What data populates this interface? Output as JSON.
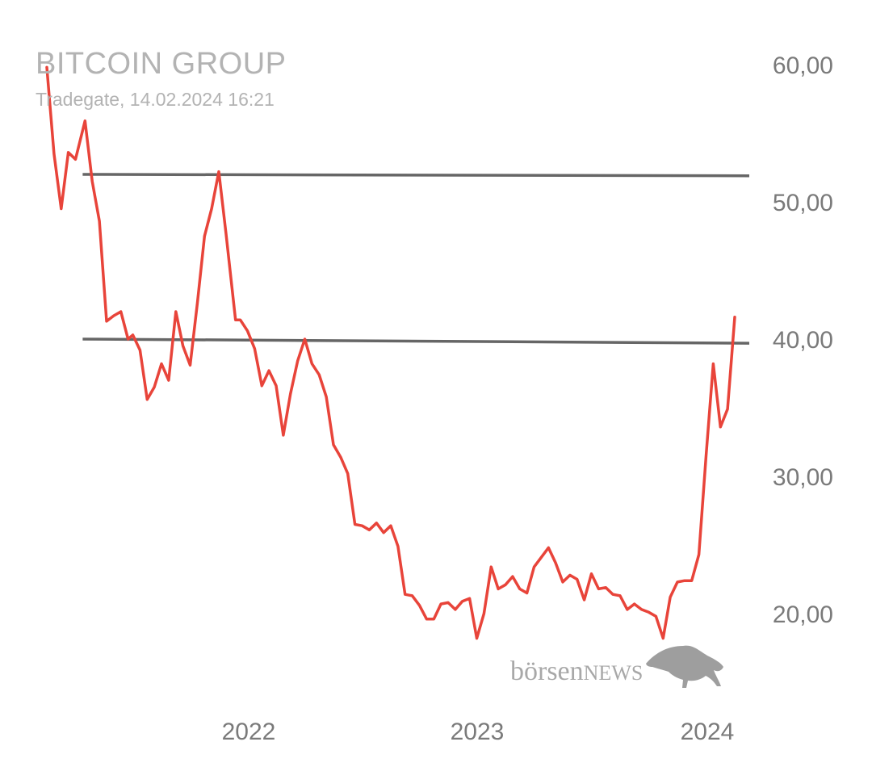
{
  "header": {
    "title": "BITCOIN GROUP",
    "subtitle": "Tradegate, 14.02.2024 16:21"
  },
  "watermark": {
    "word_lower": "börsen",
    "word_upper": "NEWS",
    "icon": "bull-icon"
  },
  "colors": {
    "line": "#e8443a",
    "levels": "#666666",
    "text": "#7a7a7a",
    "title": "#b3b3b3"
  },
  "chart_data": {
    "type": "line",
    "title": "BITCOIN GROUP",
    "subtitle": "Tradegate, 14.02.2024 16:21",
    "xlabel": "",
    "ylabel": "",
    "y_axis_position": "right",
    "grid": false,
    "legend": "none",
    "ylim": [
      15.0,
      60.0
    ],
    "y_ticks": [
      20.0,
      30.0,
      40.0,
      50.0,
      60.0
    ],
    "y_tick_labels": [
      "20,00",
      "30,00",
      "40,00",
      "50,00",
      "60,00"
    ],
    "xlim": [
      2021.1,
      2024.15
    ],
    "x_ticks": [
      2022,
      2023,
      2024
    ],
    "x_tick_labels": [
      "2022",
      "2023",
      "2024"
    ],
    "reference_lines": [
      {
        "x_start": 2021.25,
        "x_end": 2024.12,
        "y_start": 52.0,
        "y_end": 51.9
      },
      {
        "x_start": 2021.25,
        "x_end": 2024.12,
        "y_start": 40.0,
        "y_end": 39.7
      }
    ],
    "series": [
      {
        "values": [
          [
            2021.1,
            59.8
          ],
          [
            2021.13,
            53.5
          ],
          [
            2021.16,
            49.5
          ],
          [
            2021.19,
            53.6
          ],
          [
            2021.22,
            53.1
          ],
          [
            2021.26,
            55.9
          ],
          [
            2021.29,
            51.5
          ],
          [
            2021.32,
            48.6
          ],
          [
            2021.35,
            41.3
          ],
          [
            2021.38,
            41.7
          ],
          [
            2021.41,
            42.0
          ],
          [
            2021.44,
            40.0
          ],
          [
            2021.46,
            40.3
          ],
          [
            2021.49,
            39.2
          ],
          [
            2021.52,
            35.6
          ],
          [
            2021.55,
            36.5
          ],
          [
            2021.58,
            38.2
          ],
          [
            2021.61,
            37.0
          ],
          [
            2021.64,
            42.0
          ],
          [
            2021.67,
            39.5
          ],
          [
            2021.7,
            38.1
          ],
          [
            2021.73,
            42.6
          ],
          [
            2021.76,
            47.5
          ],
          [
            2021.79,
            49.5
          ],
          [
            2021.82,
            52.2
          ],
          [
            2021.85,
            47.7
          ],
          [
            2021.89,
            41.4
          ],
          [
            2021.91,
            41.4
          ],
          [
            2021.94,
            40.6
          ],
          [
            2021.97,
            39.3
          ],
          [
            2022.0,
            36.6
          ],
          [
            2022.03,
            37.7
          ],
          [
            2022.06,
            36.6
          ],
          [
            2022.09,
            33.0
          ],
          [
            2022.12,
            36.0
          ],
          [
            2022.15,
            38.4
          ],
          [
            2022.18,
            40.0
          ],
          [
            2022.21,
            38.2
          ],
          [
            2022.24,
            37.4
          ],
          [
            2022.27,
            35.8
          ],
          [
            2022.3,
            32.3
          ],
          [
            2022.33,
            31.4
          ],
          [
            2022.36,
            30.2
          ],
          [
            2022.39,
            26.5
          ],
          [
            2022.42,
            26.4
          ],
          [
            2022.45,
            26.1
          ],
          [
            2022.48,
            26.6
          ],
          [
            2022.51,
            25.9
          ],
          [
            2022.54,
            26.4
          ],
          [
            2022.57,
            24.9
          ],
          [
            2022.6,
            21.4
          ],
          [
            2022.63,
            21.3
          ],
          [
            2022.66,
            20.6
          ],
          [
            2022.69,
            19.6
          ],
          [
            2022.72,
            19.6
          ],
          [
            2022.75,
            20.7
          ],
          [
            2022.78,
            20.8
          ],
          [
            2022.81,
            20.3
          ],
          [
            2022.84,
            20.9
          ],
          [
            2022.87,
            21.1
          ],
          [
            2022.9,
            18.2
          ],
          [
            2022.93,
            20.0
          ],
          [
            2022.96,
            23.4
          ],
          [
            2022.99,
            21.8
          ],
          [
            2023.02,
            22.1
          ],
          [
            2023.05,
            22.7
          ],
          [
            2023.08,
            21.8
          ],
          [
            2023.11,
            21.5
          ],
          [
            2023.14,
            23.4
          ],
          [
            2023.17,
            24.1
          ],
          [
            2023.2,
            24.8
          ],
          [
            2023.23,
            23.7
          ],
          [
            2023.26,
            22.3
          ],
          [
            2023.29,
            22.8
          ],
          [
            2023.32,
            22.5
          ],
          [
            2023.35,
            21.0
          ],
          [
            2023.38,
            22.9
          ],
          [
            2023.41,
            21.8
          ],
          [
            2023.44,
            21.9
          ],
          [
            2023.47,
            21.4
          ],
          [
            2023.5,
            21.3
          ],
          [
            2023.53,
            20.3
          ],
          [
            2023.56,
            20.7
          ],
          [
            2023.59,
            20.3
          ],
          [
            2023.62,
            20.1
          ],
          [
            2023.65,
            19.8
          ],
          [
            2023.68,
            18.2
          ],
          [
            2023.71,
            21.2
          ],
          [
            2023.74,
            22.3
          ],
          [
            2023.77,
            22.4
          ],
          [
            2023.8,
            22.4
          ],
          [
            2023.83,
            24.3
          ],
          [
            2023.86,
            31.5
          ],
          [
            2023.89,
            38.2
          ],
          [
            2023.92,
            33.6
          ],
          [
            2023.95,
            34.9
          ],
          [
            2023.98,
            41.6
          ]
        ]
      }
    ]
  }
}
